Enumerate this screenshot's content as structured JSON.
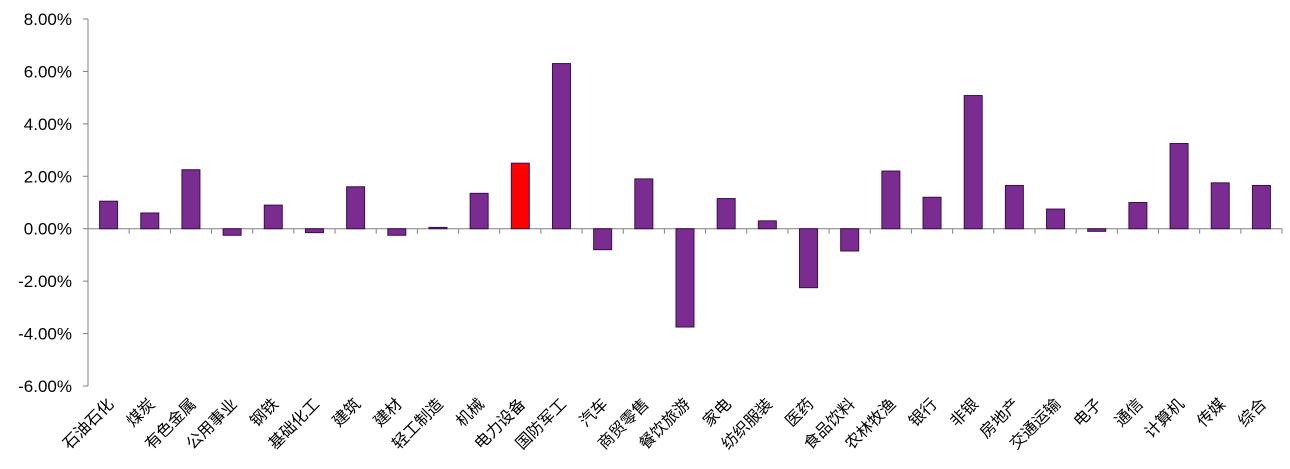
{
  "chart_data": {
    "type": "bar",
    "title": "",
    "xlabel": "",
    "ylabel": "",
    "ylim": [
      -6.0,
      8.0
    ],
    "y_ticks": [
      "8.00%",
      "6.00%",
      "4.00%",
      "2.00%",
      "0.00%",
      "-2.00%",
      "-4.00%",
      "-6.00%"
    ],
    "y_tick_values": [
      8,
      6,
      4,
      2,
      0,
      -2,
      -4,
      -6
    ],
    "grid": false,
    "legend": "none",
    "categories": [
      "石油石化",
      "煤炭",
      "有色金属",
      "公用事业",
      "钢铁",
      "基础化工",
      "建筑",
      "建材",
      "轻工制造",
      "机械",
      "电力设备",
      "国防军工",
      "汽车",
      "商贸零售",
      "餐饮旅游",
      "家电",
      "纺织服装",
      "医药",
      "食品饮料",
      "农林牧渔",
      "银行",
      "非银",
      "房地产",
      "交通运输",
      "电子",
      "通信",
      "计算机",
      "传媒",
      "综合"
    ],
    "values": [
      1.05,
      0.6,
      2.25,
      -0.25,
      0.9,
      -0.15,
      1.6,
      -0.25,
      0.05,
      1.35,
      2.5,
      6.3,
      -0.8,
      1.9,
      -3.75,
      1.15,
      0.3,
      -2.25,
      -0.85,
      2.2,
      1.2,
      5.08,
      1.65,
      0.75,
      -0.1,
      1.0,
      3.25,
      1.75,
      1.65
    ],
    "highlight_category": "电力设备",
    "colors": {
      "bar": "#7B2C91",
      "highlight": "#FF0000",
      "axis": "#808080",
      "edge": "#3A0F4A"
    }
  }
}
